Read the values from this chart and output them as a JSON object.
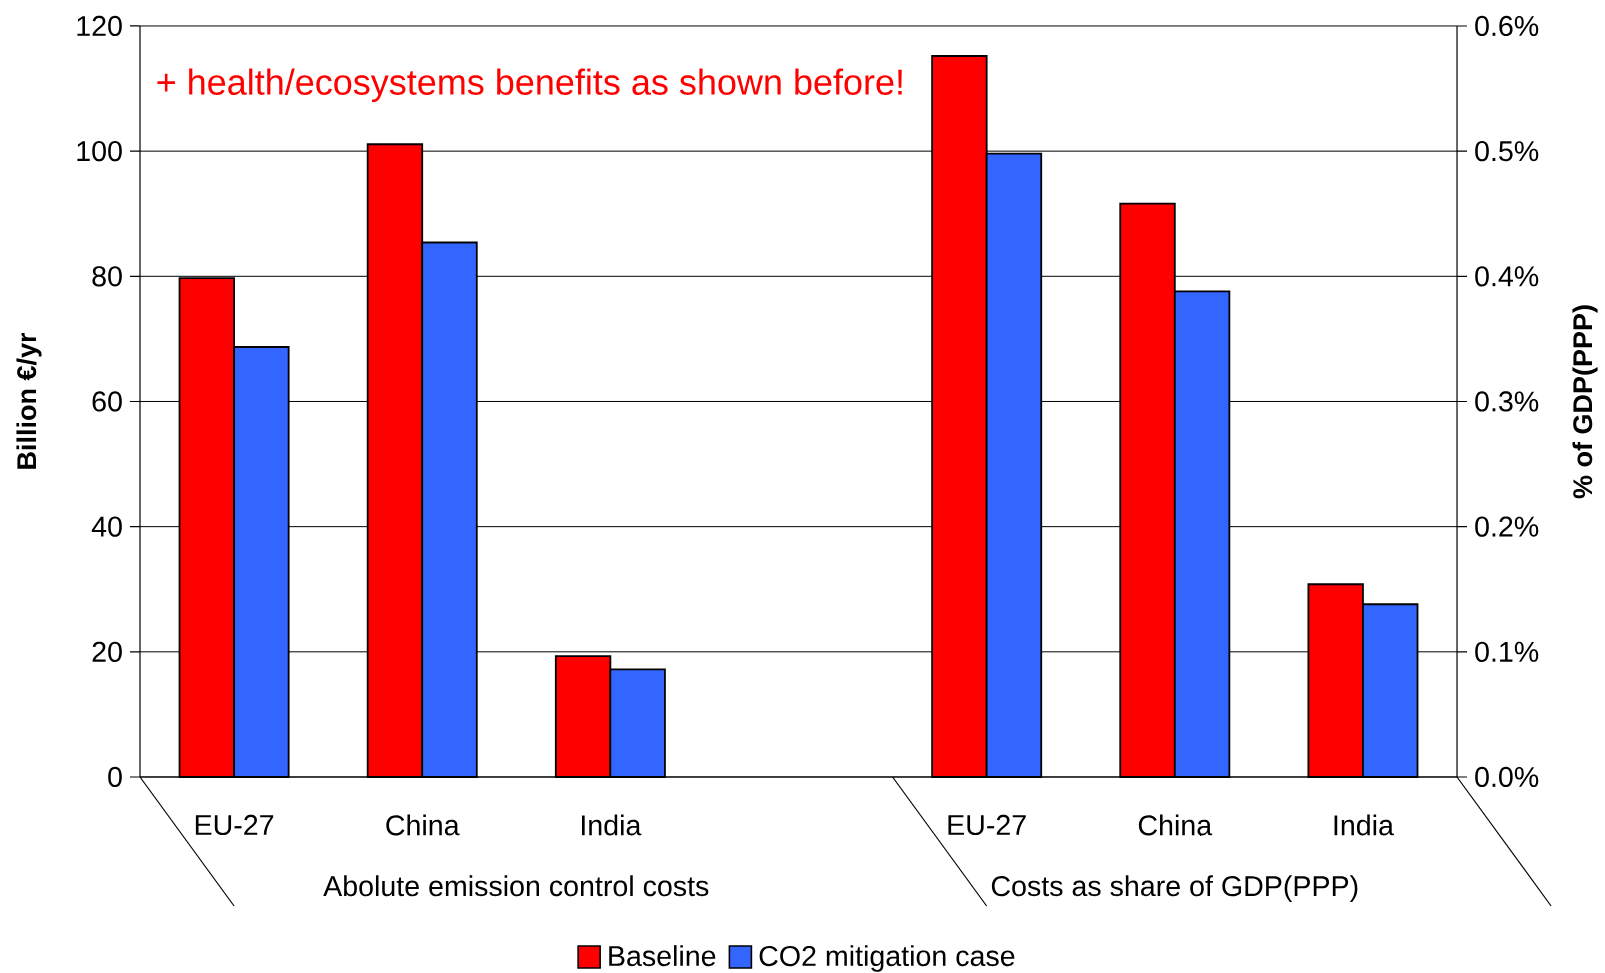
{
  "chart_data": {
    "type": "bar",
    "categories": [
      "EU-27",
      "China",
      "India",
      null,
      "EU-27",
      "China",
      "India"
    ],
    "series": [
      {
        "name": "Baseline",
        "color": "#ff0000",
        "values": [
          79.7,
          101.1,
          19.3,
          null,
          null,
          null,
          null
        ]
      },
      {
        "name": "CO2 mitigation case",
        "color": "#3366ff",
        "values": [
          68.7,
          85.4,
          17.2,
          null,
          null,
          null,
          null
        ]
      },
      {
        "color": "#ff0000",
        "axis": "y2",
        "values": [
          null,
          null,
          null,
          null,
          0.576,
          0.458,
          0.154
        ]
      },
      {
        "color": "#3366ff",
        "axis": "y2",
        "values": [
          null,
          null,
          null,
          null,
          0.498,
          0.388,
          0.138
        ]
      }
    ],
    "ylabel": "Billion €/yr",
    "y2label": "% of GDP(PPP)",
    "ylim": [
      0,
      120
    ],
    "yticks": [
      0,
      20,
      40,
      60,
      80,
      100,
      120
    ],
    "y2lim": [
      0,
      0.6
    ],
    "y2ticks": [
      {
        "value": 0,
        "label": "0.0%"
      },
      {
        "value": 0.1,
        "label": "0.1%"
      },
      {
        "value": 0.2,
        "label": "0.2%"
      },
      {
        "value": 0.3,
        "label": "0.3%"
      },
      {
        "value": 0.4,
        "label": "0.4%"
      },
      {
        "value": 0.5,
        "label": "0.5%"
      },
      {
        "value": 0.6,
        "label": "0.6%"
      }
    ],
    "grid": "y",
    "legend": "bottom",
    "annotations": [
      "Abolute emission control costs",
      "Costs as share of GDP(PPP)",
      "+ health/ecosystems benefits as shown before!"
    ]
  }
}
